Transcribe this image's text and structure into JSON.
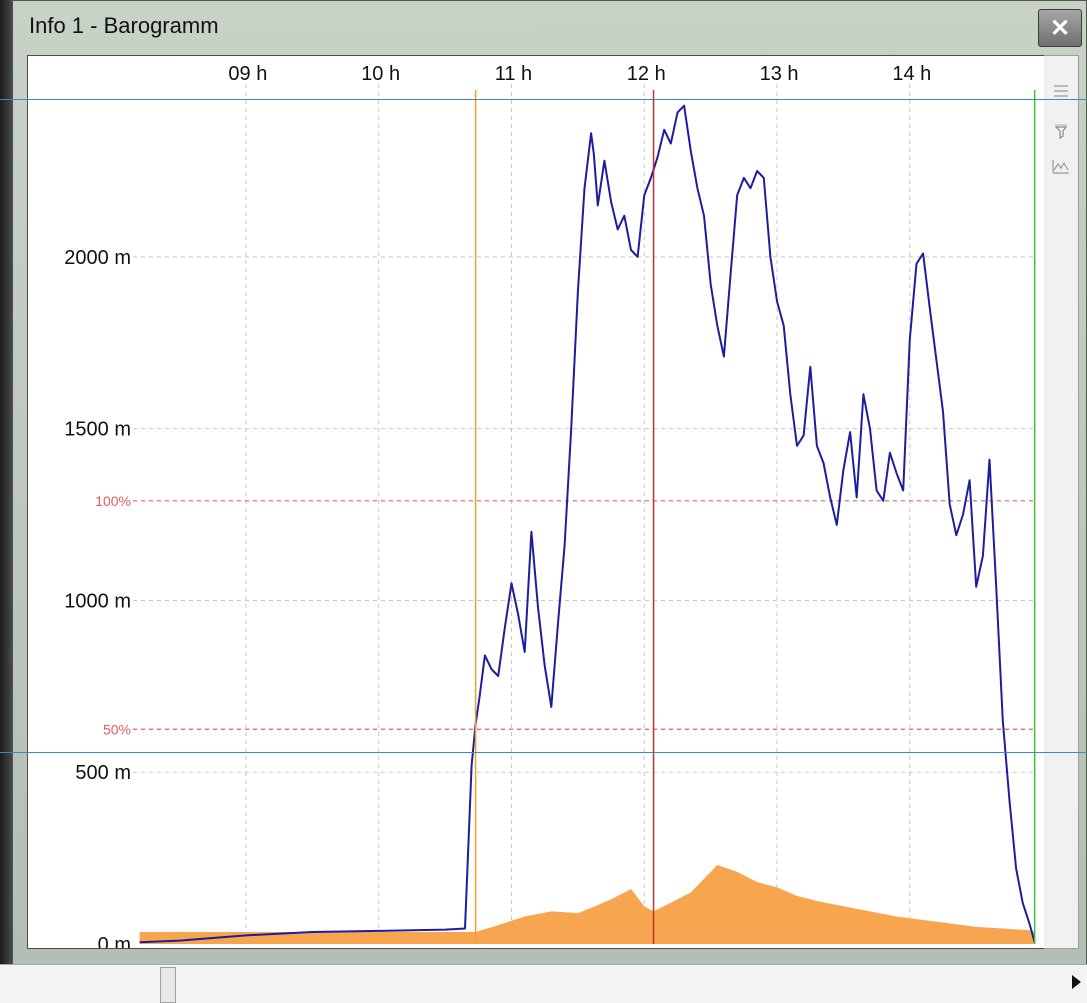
{
  "window": {
    "title": "Info 1 - Barogramm",
    "close_label": "✕"
  },
  "chart_data": {
    "type": "line",
    "title": "",
    "x_unit": "h",
    "x_ticks": [
      "09 h",
      "10 h",
      "11 h",
      "12 h",
      "13 h",
      "14 h"
    ],
    "xlim": [
      8.15,
      14.95
    ],
    "y_ticks": [
      "0 m",
      "500 m",
      "1000 m",
      "1500 m",
      "2000 m"
    ],
    "ylim": [
      0,
      2480
    ],
    "threshold_lines": [
      {
        "label": "100%",
        "value": 1290,
        "color": "#e06060"
      },
      {
        "label": "50%",
        "value": 625,
        "color": "#e06060"
      }
    ],
    "markers": [
      {
        "name": "start",
        "x": 10.73,
        "color": "#f0a030"
      },
      {
        "name": "cursor",
        "x": 12.07,
        "color": "#c03030"
      },
      {
        "name": "end",
        "x": 14.94,
        "color": "#40c040"
      }
    ],
    "series": [
      {
        "kind": "altitude",
        "color": "#1d1d9e",
        "x": [
          8.2,
          8.5,
          9.0,
          9.5,
          10.0,
          10.5,
          10.65,
          10.7,
          10.73,
          10.76,
          10.8,
          10.85,
          10.9,
          10.95,
          11.0,
          11.05,
          11.1,
          11.15,
          11.2,
          11.25,
          11.3,
          11.35,
          11.4,
          11.45,
          11.5,
          11.55,
          11.6,
          11.62,
          11.65,
          11.7,
          11.75,
          11.8,
          11.85,
          11.9,
          11.95,
          12.0,
          12.05,
          12.1,
          12.15,
          12.2,
          12.25,
          12.3,
          12.35,
          12.4,
          12.45,
          12.5,
          12.55,
          12.6,
          12.65,
          12.7,
          12.75,
          12.8,
          12.85,
          12.9,
          12.95,
          13.0,
          13.05,
          13.1,
          13.15,
          13.2,
          13.25,
          13.3,
          13.35,
          13.4,
          13.45,
          13.5,
          13.55,
          13.6,
          13.65,
          13.7,
          13.75,
          13.8,
          13.85,
          13.9,
          13.95,
          14.0,
          14.05,
          14.1,
          14.15,
          14.2,
          14.25,
          14.3,
          14.35,
          14.4,
          14.45,
          14.5,
          14.55,
          14.6,
          14.65,
          14.7,
          14.75,
          14.8,
          14.85,
          14.9,
          14.94
        ],
        "y": [
          5,
          10,
          25,
          35,
          38,
          42,
          45,
          520,
          640,
          720,
          840,
          800,
          780,
          920,
          1050,
          960,
          850,
          1200,
          980,
          810,
          690,
          930,
          1160,
          1500,
          1900,
          2200,
          2360,
          2300,
          2150,
          2280,
          2160,
          2080,
          2120,
          2020,
          2000,
          2180,
          2230,
          2290,
          2370,
          2330,
          2420,
          2440,
          2310,
          2200,
          2120,
          1920,
          1800,
          1710,
          1950,
          2180,
          2230,
          2200,
          2250,
          2230,
          2000,
          1870,
          1800,
          1600,
          1450,
          1480,
          1680,
          1450,
          1400,
          1300,
          1220,
          1380,
          1490,
          1300,
          1600,
          1500,
          1320,
          1290,
          1430,
          1370,
          1320,
          1760,
          1980,
          2010,
          1850,
          1700,
          1550,
          1280,
          1190,
          1250,
          1350,
          1040,
          1130,
          1410,
          1040,
          650,
          420,
          220,
          120,
          60,
          5
        ]
      },
      {
        "kind": "ground",
        "color": "#f7a54f",
        "x": [
          8.2,
          10.73,
          10.9,
          11.1,
          11.3,
          11.5,
          11.6,
          11.75,
          11.9,
          12.0,
          12.07,
          12.2,
          12.35,
          12.45,
          12.55,
          12.7,
          12.85,
          13.0,
          13.15,
          13.3,
          13.5,
          13.7,
          13.9,
          14.1,
          14.3,
          14.5,
          14.7,
          14.9,
          14.94
        ],
        "y": [
          35,
          35,
          55,
          80,
          95,
          90,
          105,
          130,
          160,
          110,
          95,
          120,
          150,
          190,
          230,
          210,
          180,
          165,
          140,
          125,
          110,
          95,
          80,
          70,
          60,
          50,
          45,
          40,
          35
        ]
      }
    ]
  }
}
